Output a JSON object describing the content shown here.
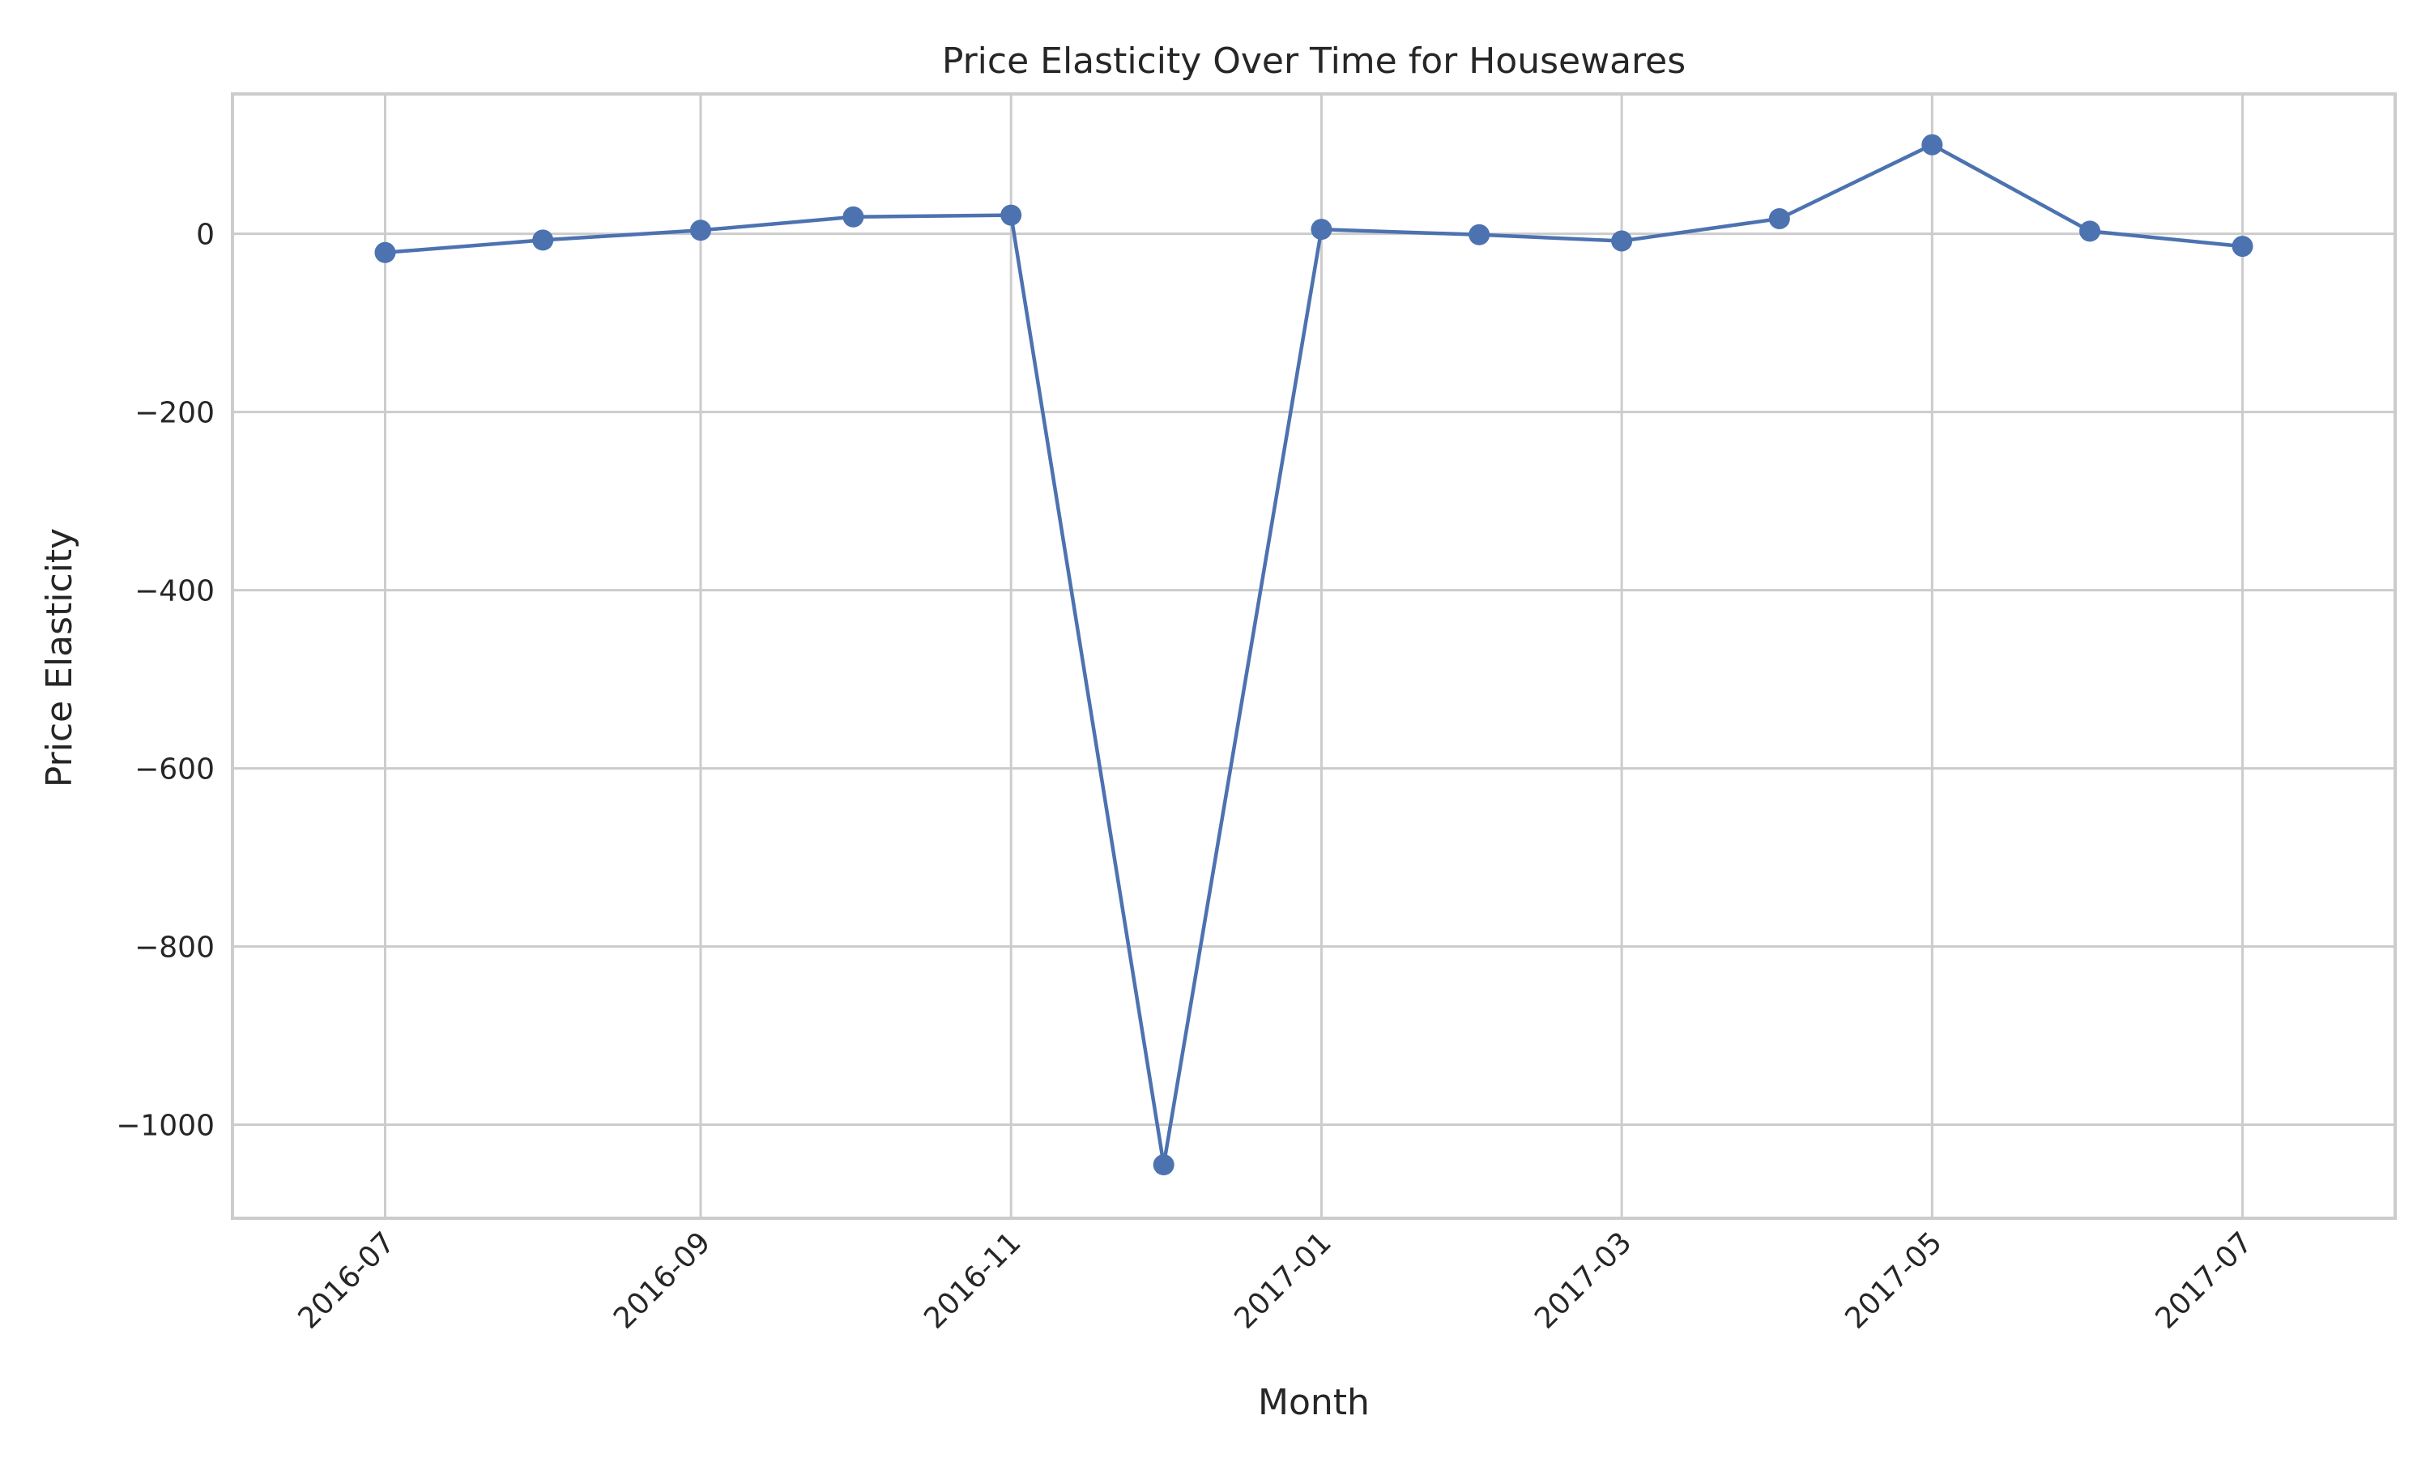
{
  "chart_data": {
    "type": "line",
    "title": "Price Elasticity Over Time for Housewares",
    "xlabel": "Month",
    "ylabel": "Price Elasticity",
    "x_tick_labels": [
      "2016-07",
      "2016-09",
      "2016-11",
      "2017-01",
      "2017-03",
      "2017-05",
      "2017-07"
    ],
    "x_tick_dates": [
      "2016-07-01",
      "2016-09-01",
      "2016-11-01",
      "2017-01-01",
      "2017-03-01",
      "2017-05-01",
      "2017-07-01"
    ],
    "y_ticks": [
      0,
      -200,
      -400,
      -600,
      -800,
      -1000
    ],
    "y_tick_labels": [
      "0",
      "−200",
      "−400",
      "−600",
      "−800",
      "−1000"
    ],
    "xlim": [
      "2016-06-01",
      "2017-07-31"
    ],
    "ylim": [
      -1105,
      157
    ],
    "grid": true,
    "color": "#4c72b0",
    "series": [
      {
        "x": [
          "2016-07-01",
          "2016-08-01",
          "2016-09-01",
          "2016-10-01",
          "2016-11-01",
          "2016-12-01",
          "2017-01-01",
          "2017-02-01",
          "2017-03-01",
          "2017-04-01",
          "2017-05-01",
          "2017-06-01",
          "2017-07-01"
        ],
        "values": [
          -21,
          -7,
          4,
          19,
          21,
          -1045,
          5,
          -1,
          -8,
          17,
          100,
          3,
          -14
        ]
      }
    ]
  }
}
